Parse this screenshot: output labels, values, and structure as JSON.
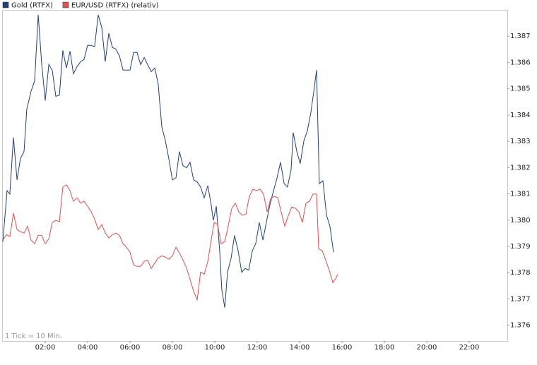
{
  "chart_data": {
    "type": "line",
    "legend": "top-left",
    "note": "1 Tick = 10 Min.",
    "xlim": [
      0,
      23.8
    ],
    "ylim": [
      1.3754,
      1.388
    ],
    "xticks": [
      {
        "value": 2,
        "label": "02:00"
      },
      {
        "value": 4,
        "label": "04:00"
      },
      {
        "value": 6,
        "label": "06:00"
      },
      {
        "value": 8,
        "label": "08:00"
      },
      {
        "value": 10,
        "label": "10:00"
      },
      {
        "value": 12,
        "label": "12:00"
      },
      {
        "value": 14,
        "label": "14:00"
      },
      {
        "value": 16,
        "label": "16:00"
      },
      {
        "value": 18,
        "label": "18:00"
      },
      {
        "value": 20,
        "label": "20:00"
      },
      {
        "value": 22,
        "label": "22:00"
      }
    ],
    "yticks": [
      1.376,
      1.377,
      1.378,
      1.379,
      {
        "value": 1.38,
        "label": "1.380"
      },
      1.381,
      1.382,
      1.383,
      1.384,
      1.385,
      1.386,
      1.387
    ],
    "series": [
      {
        "name": "Gold (RTFX)",
        "color": "#1f3f7f",
        "x": [
          0,
          0.2,
          0.33,
          0.5,
          0.67,
          0.83,
          1,
          1.13,
          1.33,
          1.5,
          1.67,
          1.83,
          2,
          2.17,
          2.33,
          2.5,
          2.67,
          2.83,
          3,
          3.17,
          3.33,
          3.5,
          3.67,
          3.83,
          4,
          4.17,
          4.33,
          4.5,
          4.67,
          4.83,
          5,
          5.17,
          5.33,
          5.5,
          5.67,
          5.83,
          6,
          6.17,
          6.33,
          6.5,
          6.67,
          6.83,
          7,
          7.17,
          7.33,
          7.5,
          7.67,
          7.83,
          8,
          8.17,
          8.33,
          8.5,
          8.67,
          8.83,
          9,
          9.17,
          9.33,
          9.5,
          9.67,
          9.83,
          9.93,
          10.07,
          10.23,
          10.33,
          10.47,
          10.6,
          10.77,
          10.93,
          11.1,
          11.27,
          11.43,
          11.6,
          11.77,
          11.93,
          12.1,
          12.27,
          12.43,
          12.6,
          12.77,
          12.93,
          13.1,
          13.27,
          13.43,
          13.6,
          13.7,
          13.87,
          14.03,
          14.2,
          14.37,
          14.53,
          14.67,
          14.8,
          14.93,
          15.1,
          15.27,
          15.43,
          15.6
        ],
        "values": [
          1.37918,
          1.38112,
          1.38099,
          1.38314,
          1.38153,
          1.38234,
          1.38261,
          1.38422,
          1.3849,
          1.3853,
          1.38781,
          1.38598,
          1.38455,
          1.38592,
          1.38571,
          1.38471,
          1.38476,
          1.38646,
          1.38579,
          1.38643,
          1.38557,
          1.38584,
          1.38603,
          1.38611,
          1.38665,
          1.38665,
          1.3866,
          1.38781,
          1.38732,
          1.38603,
          1.38711,
          1.38657,
          1.38651,
          1.38625,
          1.38571,
          1.38571,
          1.38571,
          1.38638,
          1.38638,
          1.38592,
          1.38619,
          1.38592,
          1.38565,
          1.38579,
          1.38517,
          1.38355,
          1.38301,
          1.38234,
          1.38153,
          1.38161,
          1.38261,
          1.38207,
          1.38199,
          1.3822,
          1.38153,
          1.38145,
          1.38126,
          1.38085,
          1.38131,
          1.38058,
          1.37999,
          1.38053,
          1.37883,
          1.37735,
          1.37667,
          1.37802,
          1.37856,
          1.37942,
          1.37883,
          1.37802,
          1.37816,
          1.3781,
          1.37883,
          1.3791,
          1.37991,
          1.37924,
          1.37991,
          1.38058,
          1.38112,
          1.38158,
          1.3822,
          1.38139,
          1.38126,
          1.38193,
          1.38333,
          1.38261,
          1.38215,
          1.38301,
          1.38341,
          1.38409,
          1.3849,
          1.38571,
          1.38139,
          1.3815,
          1.38018,
          1.37977,
          1.37878
        ]
      },
      {
        "name": "EUR/USD (RTFX) (relativ)",
        "color": "#e05050",
        "x": [
          0,
          0.17,
          0.33,
          0.5,
          0.67,
          0.83,
          1,
          1.17,
          1.33,
          1.5,
          1.67,
          1.83,
          2,
          2.17,
          2.33,
          2.5,
          2.67,
          2.83,
          3,
          3.17,
          3.33,
          3.5,
          3.67,
          3.83,
          4,
          4.17,
          4.33,
          4.5,
          4.67,
          4.83,
          5,
          5.17,
          5.33,
          5.5,
          5.67,
          5.83,
          6,
          6.17,
          6.33,
          6.5,
          6.67,
          6.83,
          7,
          7.17,
          7.33,
          7.5,
          7.67,
          7.83,
          8,
          8.17,
          8.33,
          8.5,
          8.67,
          8.83,
          9,
          9.17,
          9.33,
          9.5,
          9.67,
          9.83,
          9.97,
          10.13,
          10.3,
          10.47,
          10.63,
          10.8,
          10.97,
          11.13,
          11.3,
          11.47,
          11.63,
          11.8,
          11.97,
          12.13,
          12.3,
          12.47,
          12.63,
          12.8,
          12.97,
          13.13,
          13.3,
          13.47,
          13.63,
          13.8,
          13.97,
          14.13,
          14.3,
          14.47,
          14.63,
          14.8,
          14.9,
          15.07,
          15.23,
          15.4,
          15.57,
          15.73,
          15.8
        ],
        "values": [
          1.37924,
          1.37945,
          1.37937,
          1.38026,
          1.37964,
          1.37956,
          1.37951,
          1.37977,
          1.37924,
          1.3791,
          1.37942,
          1.37942,
          1.3791,
          1.37929,
          1.37991,
          1.37999,
          1.37994,
          1.38126,
          1.38134,
          1.38112,
          1.38072,
          1.38085,
          1.38064,
          1.38072,
          1.38053,
          1.38031,
          1.38004,
          1.37964,
          1.37983,
          1.37951,
          1.37932,
          1.37945,
          1.37951,
          1.37942,
          1.3791,
          1.37897,
          1.37878,
          1.37829,
          1.37824,
          1.37824,
          1.37843,
          1.37848,
          1.37816,
          1.37837,
          1.37856,
          1.37864,
          1.37859,
          1.37851,
          1.37864,
          1.37897,
          1.37875,
          1.37848,
          1.37816,
          1.37775,
          1.37729,
          1.37697,
          1.37802,
          1.37794,
          1.37843,
          1.37924,
          1.37991,
          1.37983,
          1.3791,
          1.37918,
          1.37977,
          1.38045,
          1.38064,
          1.38031,
          1.38018,
          1.38023,
          1.38091,
          1.38118,
          1.38112,
          1.38118,
          1.38099,
          1.38031,
          1.3808,
          1.38091,
          1.38085,
          1.38031,
          1.37977,
          1.38018,
          1.3805,
          1.38045,
          1.38031,
          1.37991,
          1.38064,
          1.38072,
          1.38099,
          1.38099,
          1.37891,
          1.37883,
          1.37848,
          1.37808,
          1.37762,
          1.37781,
          1.37794
        ]
      }
    ]
  }
}
